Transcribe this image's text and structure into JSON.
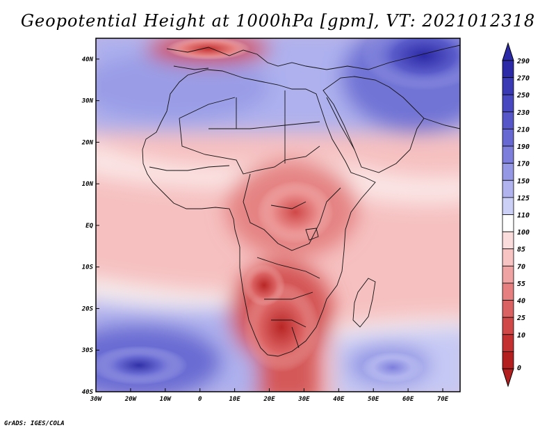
{
  "title": "Geopotential Height at 1000hPa [gpm], VT: 2021012318",
  "footer": "GrADS: IGES/COLA",
  "map": {
    "lon_range": [
      -30,
      75
    ],
    "lat_range": [
      -40,
      45
    ],
    "lon_ticks": [
      "30W",
      "20W",
      "10W",
      "0",
      "10E",
      "20E",
      "30E",
      "40E",
      "50E",
      "60E",
      "70E"
    ],
    "lat_ticks": [
      "40N",
      "30N",
      "20N",
      "10N",
      "EQ",
      "10S",
      "20S",
      "30S",
      "40S"
    ],
    "features": [
      "Africa",
      "Arabian Peninsula",
      "Madagascar",
      "Mediterranean Sea",
      "Southern Europe",
      "Middle East"
    ]
  },
  "legend": {
    "labels": [
      "290",
      "270",
      "250",
      "230",
      "210",
      "190",
      "170",
      "150",
      "125",
      "110",
      "100",
      "85",
      "70",
      "55",
      "40",
      "25",
      "10",
      "0"
    ],
    "colors": [
      "#2c2aa6",
      "#3a3ab4",
      "#4848c0",
      "#5656c9",
      "#6868d2",
      "#7d7edc",
      "#9598e5",
      "#b0b3ee",
      "#ccd0f6",
      "#ffffff",
      "#fbdcdc",
      "#f7c3c3",
      "#f0a3a3",
      "#e68080",
      "#db6262",
      "#d04848",
      "#c43030",
      "#b31f1f"
    ]
  }
}
